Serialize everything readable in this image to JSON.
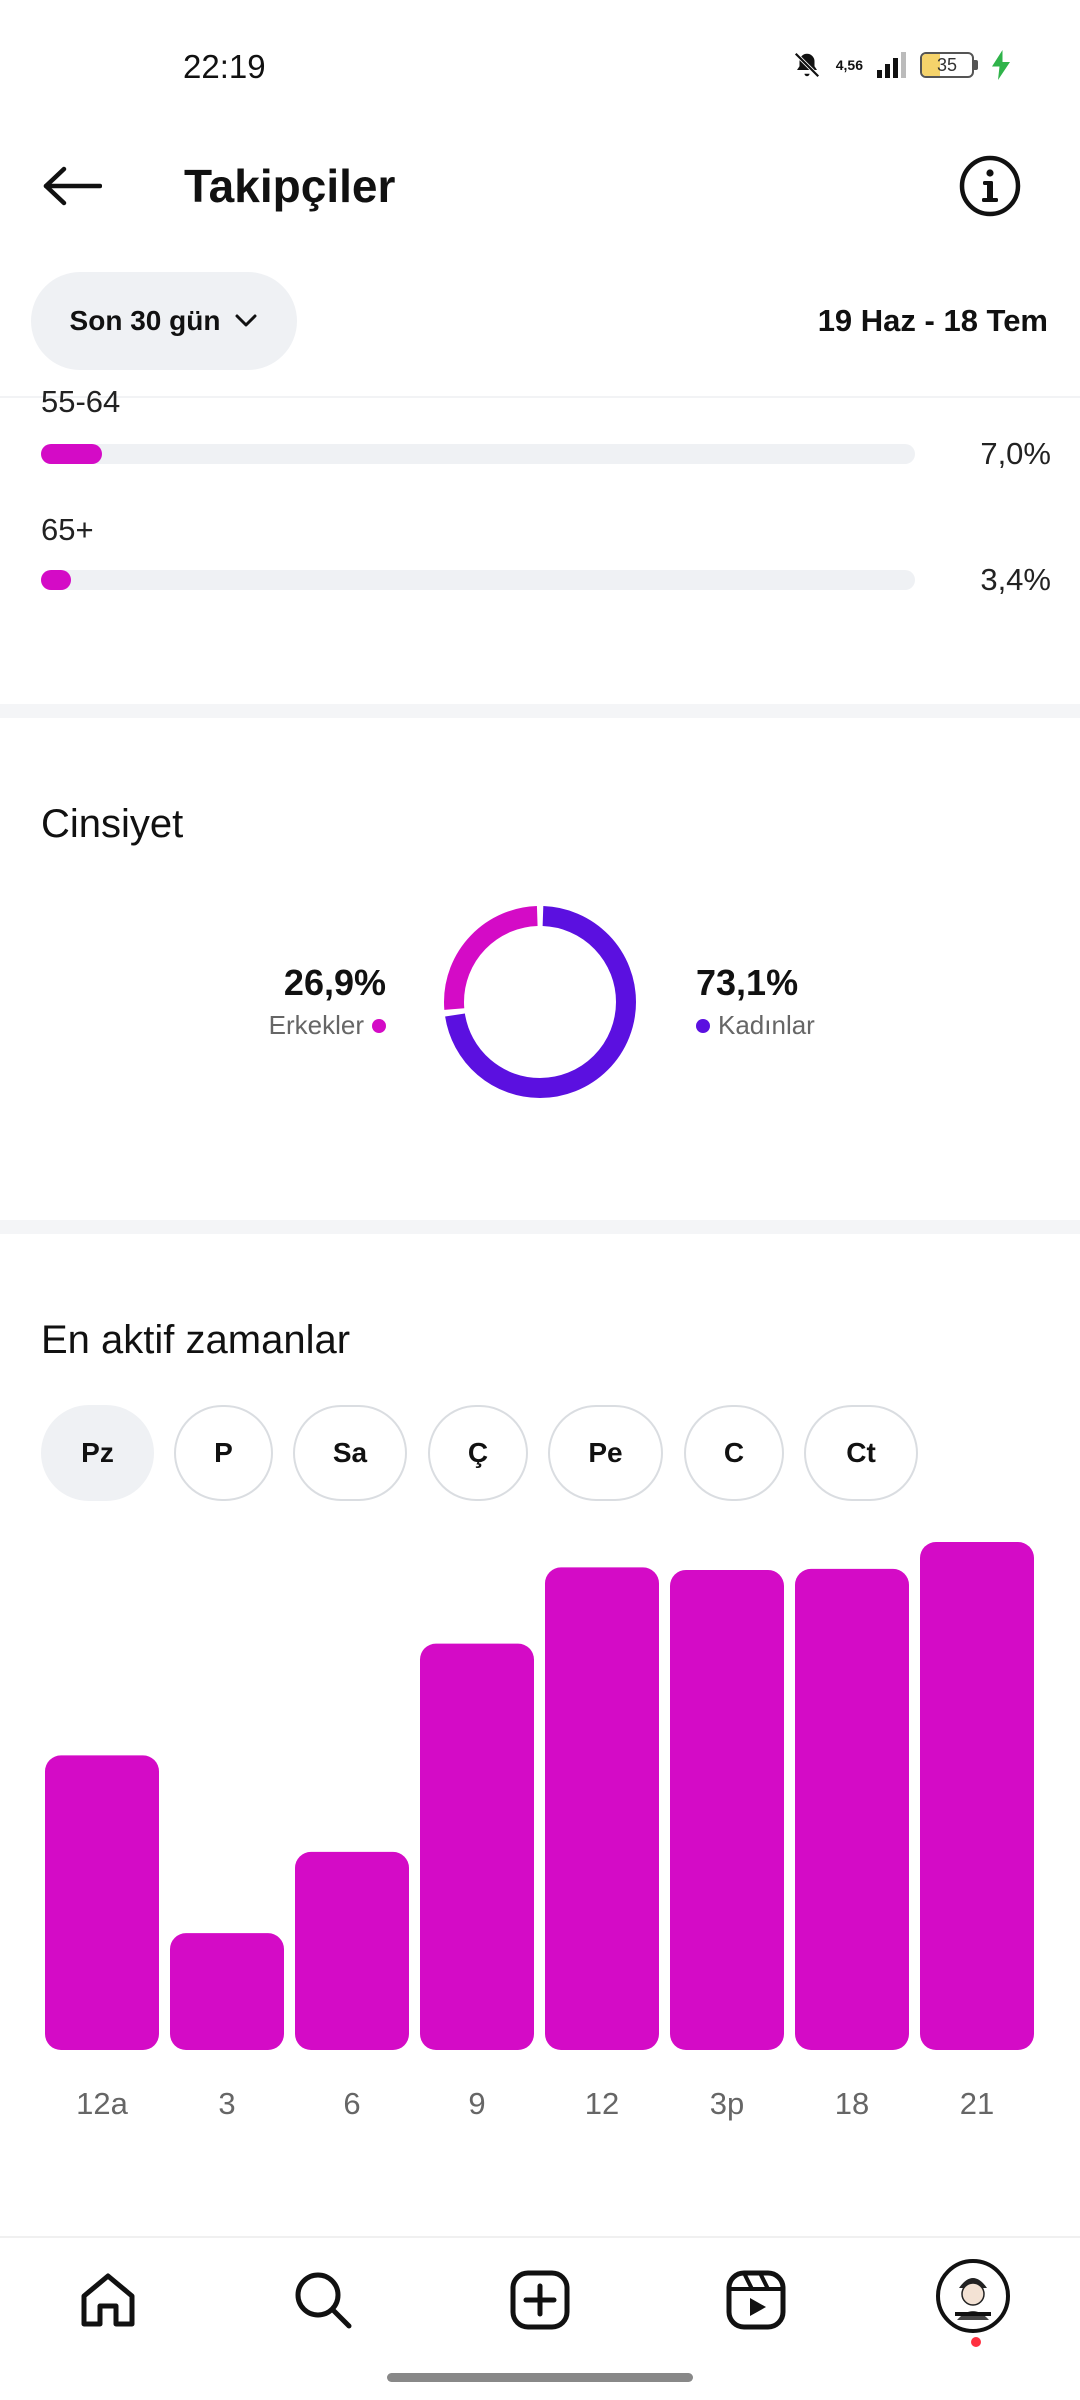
{
  "status_bar": {
    "time": "22:19",
    "net_speed_value": "4,56",
    "battery_level": "35"
  },
  "header": {
    "title": "Takipçiler"
  },
  "filter": {
    "range_label": "Son 30 gün",
    "date_range": "19 Haz - 18 Tem"
  },
  "age_groups": [
    {
      "label": "55-64",
      "value": "7,0%",
      "fraction": 0.07
    },
    {
      "label": "65+",
      "value": "3,4%",
      "fraction": 0.034
    }
  ],
  "gender": {
    "title": "Cinsiyet",
    "men": {
      "value": "26,9%",
      "label": "Erkekler",
      "fraction": 0.269
    },
    "women": {
      "value": "73,1%",
      "label": "Kadınlar",
      "fraction": 0.731
    }
  },
  "active_times": {
    "title": "En aktif zamanlar",
    "days": [
      {
        "label": "Pz",
        "active": true
      },
      {
        "label": "P",
        "active": false
      },
      {
        "label": "Sa",
        "active": false
      },
      {
        "label": "Ç",
        "active": false
      },
      {
        "label": "Pe",
        "active": false
      },
      {
        "label": "C",
        "active": false
      },
      {
        "label": "Ct",
        "active": false
      }
    ]
  },
  "chart_data": {
    "type": "bar",
    "title": "",
    "xlabel": "",
    "ylabel": "",
    "categories": [
      "12a",
      "3",
      "6",
      "9",
      "12",
      "3p",
      "18",
      "21"
    ],
    "values": [
      58,
      23,
      39,
      80,
      95,
      94.5,
      94.7,
      100
    ],
    "ylim": [
      0,
      100
    ],
    "grid": false,
    "color": "#d40bc6"
  },
  "colors": {
    "accent": "#d40bc6",
    "women": "#5b10e0",
    "track": "#eff1f4"
  },
  "bottom_nav": {
    "items": [
      {
        "name": "home-icon"
      },
      {
        "name": "search-icon"
      },
      {
        "name": "create-icon"
      },
      {
        "name": "reels-icon"
      },
      {
        "name": "profile-avatar"
      }
    ]
  }
}
